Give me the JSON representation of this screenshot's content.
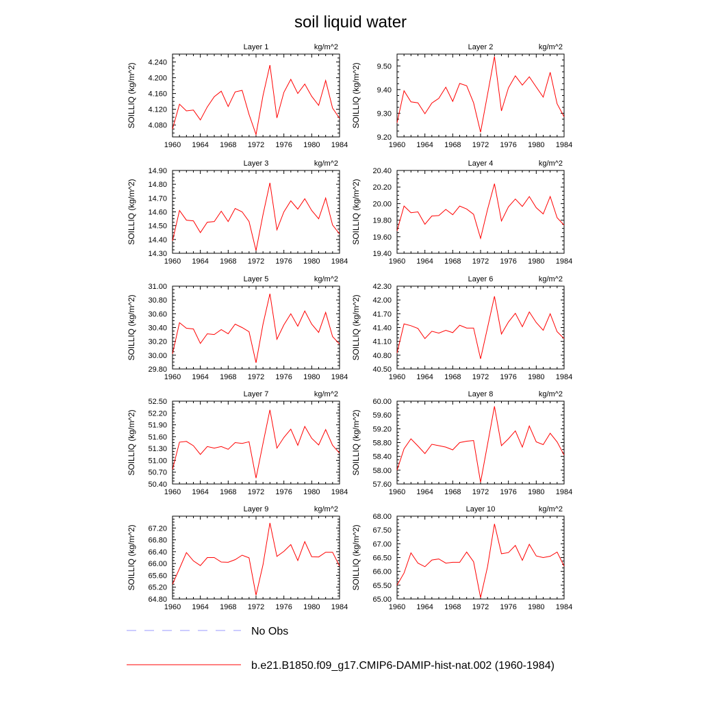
{
  "title": "soil liquid water",
  "ylabel": "SOILLIQ  (kg/m^2)",
  "units": "kg/m^2",
  "colors": {
    "model_line": "#ff0000",
    "obs_line": "#9999ff"
  },
  "legend": {
    "obs": "No Obs",
    "model": "b.e21.B1850.f09_g17.CMIP6-DAMIP-hist-nat.002 (1960-1984)"
  },
  "chart_data": [
    {
      "type": "line",
      "title": "Layer 1",
      "units": "kg/m^2",
      "ylabel": "SOILLIQ  (kg/m^2)",
      "xlim": [
        1960,
        1984
      ],
      "ylim": [
        4.05,
        4.26
      ],
      "xticks": [
        "1960",
        "1964",
        "1968",
        "1972",
        "1976",
        "1980",
        "1984"
      ],
      "yticks": [
        "4.080",
        "4.120",
        "4.160",
        "4.200",
        "4.240"
      ],
      "series": [
        {
          "name": "b.e21.B1850.f09_g17.CMIP6-DAMIP-hist-nat.002 (1960-1984)",
          "x": [
            1960,
            1961,
            1962,
            1963,
            1964,
            1965,
            1966,
            1967,
            1968,
            1969,
            1970,
            1971,
            1972,
            1973,
            1974,
            1975,
            1976,
            1977,
            1978,
            1979,
            1980,
            1981,
            1982,
            1983,
            1984
          ],
          "values": [
            4.07,
            4.133,
            4.116,
            4.118,
            4.093,
            4.126,
            4.152,
            4.166,
            4.127,
            4.164,
            4.168,
            4.107,
            4.056,
            4.155,
            4.232,
            4.098,
            4.163,
            4.196,
            4.16,
            4.184,
            4.153,
            4.13,
            4.193,
            4.123,
            4.097
          ]
        }
      ]
    },
    {
      "type": "line",
      "title": "Layer 2",
      "units": "kg/m^2",
      "ylabel": "SOILLIQ  (kg/m^2)",
      "xlim": [
        1960,
        1984
      ],
      "ylim": [
        9.2,
        9.55
      ],
      "xticks": [
        "1960",
        "1964",
        "1968",
        "1972",
        "1976",
        "1980",
        "1984"
      ],
      "yticks": [
        "9.20",
        "9.30",
        "9.40",
        "9.50"
      ],
      "series": [
        {
          "name": "b.e21.B1850.f09_g17.CMIP6-DAMIP-hist-nat.002 (1960-1984)",
          "x": [
            1960,
            1961,
            1962,
            1963,
            1964,
            1965,
            1966,
            1967,
            1968,
            1969,
            1970,
            1971,
            1972,
            1973,
            1974,
            1975,
            1976,
            1977,
            1978,
            1979,
            1980,
            1981,
            1982,
            1983,
            1984
          ],
          "values": [
            9.26,
            9.395,
            9.348,
            9.344,
            9.298,
            9.343,
            9.363,
            9.41,
            9.35,
            9.426,
            9.416,
            9.344,
            9.22,
            9.38,
            9.54,
            9.31,
            9.407,
            9.458,
            9.419,
            9.454,
            9.411,
            9.368,
            9.473,
            9.34,
            9.285
          ]
        }
      ]
    },
    {
      "type": "line",
      "title": "Layer 3",
      "units": "kg/m^2",
      "ylabel": "SOILLIQ  (kg/m^2)",
      "xlim": [
        1960,
        1984
      ],
      "ylim": [
        14.3,
        14.9
      ],
      "xticks": [
        "1960",
        "1964",
        "1968",
        "1972",
        "1976",
        "1980",
        "1984"
      ],
      "yticks": [
        "14.30",
        "14.40",
        "14.50",
        "14.60",
        "14.70",
        "14.80",
        "14.90"
      ],
      "series": [
        {
          "name": "b.e21.B1850.f09_g17.CMIP6-DAMIP-hist-nat.002 (1960-1984)",
          "x": [
            1960,
            1961,
            1962,
            1963,
            1964,
            1965,
            1966,
            1967,
            1968,
            1969,
            1970,
            1971,
            1972,
            1973,
            1974,
            1975,
            1976,
            1977,
            1978,
            1979,
            1980,
            1981,
            1982,
            1983,
            1984
          ],
          "values": [
            14.39,
            14.61,
            14.54,
            14.535,
            14.45,
            14.525,
            14.53,
            14.605,
            14.53,
            14.625,
            14.6,
            14.53,
            14.32,
            14.58,
            14.81,
            14.47,
            14.6,
            14.68,
            14.62,
            14.695,
            14.61,
            14.55,
            14.7,
            14.505,
            14.44
          ]
        }
      ]
    },
    {
      "type": "line",
      "title": "Layer 4",
      "units": "kg/m^2",
      "ylabel": "SOILLIQ  (kg/m^2)",
      "xlim": [
        1960,
        1984
      ],
      "ylim": [
        19.4,
        20.4
      ],
      "xticks": [
        "1960",
        "1964",
        "1968",
        "1972",
        "1976",
        "1980",
        "1984"
      ],
      "yticks": [
        "19.40",
        "19.60",
        "19.80",
        "20.00",
        "20.20",
        "20.40"
      ],
      "series": [
        {
          "name": "b.e21.B1850.f09_g17.CMIP6-DAMIP-hist-nat.002 (1960-1984)",
          "x": [
            1960,
            1961,
            1962,
            1963,
            1964,
            1965,
            1966,
            1967,
            1968,
            1969,
            1970,
            1971,
            1972,
            1973,
            1974,
            1975,
            1976,
            1977,
            1978,
            1979,
            1980,
            1981,
            1982,
            1983,
            1984
          ],
          "values": [
            19.67,
            19.97,
            19.89,
            19.9,
            19.75,
            19.85,
            19.855,
            19.93,
            19.865,
            19.97,
            19.935,
            19.87,
            19.58,
            19.93,
            20.24,
            19.79,
            19.96,
            20.055,
            19.965,
            20.085,
            19.95,
            19.875,
            20.085,
            19.83,
            19.74
          ]
        }
      ]
    },
    {
      "type": "line",
      "title": "Layer 5",
      "units": "kg/m^2",
      "ylabel": "SOILLIQ  (kg/m^2)",
      "xlim": [
        1960,
        1984
      ],
      "ylim": [
        29.8,
        31.0
      ],
      "xticks": [
        "1960",
        "1964",
        "1968",
        "1972",
        "1976",
        "1980",
        "1984"
      ],
      "yticks": [
        "29.80",
        "30.00",
        "30.20",
        "30.40",
        "30.60",
        "30.80",
        "31.00"
      ],
      "series": [
        {
          "name": "b.e21.B1850.f09_g17.CMIP6-DAMIP-hist-nat.002 (1960-1984)",
          "x": [
            1960,
            1961,
            1962,
            1963,
            1964,
            1965,
            1966,
            1967,
            1968,
            1969,
            1970,
            1971,
            1972,
            1973,
            1974,
            1975,
            1976,
            1977,
            1978,
            1979,
            1980,
            1981,
            1982,
            1983,
            1984
          ],
          "values": [
            30.02,
            30.47,
            30.39,
            30.38,
            30.17,
            30.31,
            30.3,
            30.37,
            30.31,
            30.45,
            30.4,
            30.34,
            29.89,
            30.45,
            30.89,
            30.23,
            30.44,
            30.6,
            30.42,
            30.64,
            30.45,
            30.33,
            30.62,
            30.27,
            30.16
          ]
        }
      ]
    },
    {
      "type": "line",
      "title": "Layer 6",
      "units": "kg/m^2",
      "ylabel": "SOILLIQ  (kg/m^2)",
      "xlim": [
        1960,
        1984
      ],
      "ylim": [
        40.5,
        42.3
      ],
      "xticks": [
        "1960",
        "1964",
        "1968",
        "1972",
        "1976",
        "1980",
        "1984"
      ],
      "yticks": [
        "40.50",
        "40.80",
        "41.10",
        "41.40",
        "41.70",
        "42.00",
        "42.30"
      ],
      "series": [
        {
          "name": "b.e21.B1850.f09_g17.CMIP6-DAMIP-hist-nat.002 (1960-1984)",
          "x": [
            1960,
            1961,
            1962,
            1963,
            1964,
            1965,
            1966,
            1967,
            1968,
            1969,
            1970,
            1971,
            1972,
            1973,
            1974,
            1975,
            1976,
            1977,
            1978,
            1979,
            1980,
            1981,
            1982,
            1983,
            1984
          ],
          "values": [
            40.85,
            41.48,
            41.44,
            41.38,
            41.16,
            41.32,
            41.28,
            41.34,
            41.29,
            41.45,
            41.39,
            41.39,
            40.72,
            41.4,
            42.08,
            41.26,
            41.52,
            41.71,
            41.42,
            41.74,
            41.51,
            41.34,
            41.7,
            41.31,
            41.16
          ]
        }
      ]
    },
    {
      "type": "line",
      "title": "Layer 7",
      "units": "kg/m^2",
      "ylabel": "SOILLIQ  (kg/m^2)",
      "xlim": [
        1960,
        1984
      ],
      "ylim": [
        50.4,
        52.5
      ],
      "xticks": [
        "1960",
        "1964",
        "1968",
        "1972",
        "1976",
        "1980",
        "1984"
      ],
      "yticks": [
        "50.40",
        "50.70",
        "51.00",
        "51.30",
        "51.60",
        "51.90",
        "52.20",
        "52.50"
      ],
      "series": [
        {
          "name": "b.e21.B1850.f09_g17.CMIP6-DAMIP-hist-nat.002 (1960-1984)",
          "x": [
            1960,
            1961,
            1962,
            1963,
            1964,
            1965,
            1966,
            1967,
            1968,
            1969,
            1970,
            1971,
            1972,
            1973,
            1974,
            1975,
            1976,
            1977,
            1978,
            1979,
            1980,
            1981,
            1982,
            1983,
            1984
          ],
          "values": [
            50.77,
            51.46,
            51.48,
            51.37,
            51.15,
            51.35,
            51.31,
            51.35,
            51.28,
            51.45,
            51.43,
            51.47,
            50.55,
            51.43,
            52.28,
            51.31,
            51.58,
            51.79,
            51.38,
            51.86,
            51.56,
            51.39,
            51.78,
            51.38,
            51.18
          ]
        }
      ]
    },
    {
      "type": "line",
      "title": "Layer 8",
      "units": "kg/m^2",
      "ylabel": "SOILLIQ  (kg/m^2)",
      "xlim": [
        1960,
        1984
      ],
      "ylim": [
        57.6,
        60.0
      ],
      "xticks": [
        "1960",
        "1964",
        "1968",
        "1972",
        "1976",
        "1980",
        "1984"
      ],
      "yticks": [
        "57.60",
        "58.00",
        "58.40",
        "58.80",
        "59.20",
        "59.60",
        "60.00"
      ],
      "series": [
        {
          "name": "b.e21.B1850.f09_g17.CMIP6-DAMIP-hist-nat.002 (1960-1984)",
          "x": [
            1960,
            1961,
            1962,
            1963,
            1964,
            1965,
            1966,
            1967,
            1968,
            1969,
            1970,
            1971,
            1972,
            1973,
            1974,
            1975,
            1976,
            1977,
            1978,
            1979,
            1980,
            1981,
            1982,
            1983,
            1984
          ],
          "values": [
            58.0,
            58.62,
            58.91,
            58.7,
            58.48,
            58.75,
            58.71,
            58.67,
            58.59,
            58.8,
            58.84,
            58.86,
            57.65,
            58.75,
            59.85,
            58.71,
            58.91,
            59.14,
            58.67,
            59.28,
            58.82,
            58.74,
            59.07,
            58.82,
            58.44
          ]
        }
      ]
    },
    {
      "type": "line",
      "title": "Layer 9",
      "units": "kg/m^2",
      "ylabel": "SOILLIQ  (kg/m^2)",
      "xlim": [
        1960,
        1984
      ],
      "ylim": [
        64.8,
        67.6
      ],
      "xticks": [
        "1960",
        "1964",
        "1968",
        "1972",
        "1976",
        "1980",
        "1984"
      ],
      "yticks": [
        "64.80",
        "65.20",
        "65.60",
        "66.00",
        "66.40",
        "66.80",
        "67.20"
      ],
      "series": [
        {
          "name": "b.e21.B1850.f09_g17.CMIP6-DAMIP-hist-nat.002 (1960-1984)",
          "x": [
            1960,
            1961,
            1962,
            1963,
            1964,
            1965,
            1966,
            1967,
            1968,
            1969,
            1970,
            1971,
            1972,
            1973,
            1974,
            1975,
            1976,
            1977,
            1978,
            1979,
            1980,
            1981,
            1982,
            1983,
            1984
          ],
          "values": [
            65.3,
            65.83,
            66.37,
            66.09,
            65.93,
            66.2,
            66.2,
            66.05,
            66.04,
            66.13,
            66.28,
            66.19,
            64.93,
            65.96,
            67.37,
            66.24,
            66.41,
            66.64,
            66.1,
            66.74,
            66.23,
            66.22,
            66.38,
            66.38,
            65.91
          ]
        }
      ]
    },
    {
      "type": "line",
      "title": "Layer 10",
      "units": "kg/m^2",
      "ylabel": "SOILLIQ  (kg/m^2)",
      "xlim": [
        1960,
        1984
      ],
      "ylim": [
        65.0,
        68.0
      ],
      "xticks": [
        "1960",
        "1964",
        "1968",
        "1972",
        "1976",
        "1980",
        "1984"
      ],
      "yticks": [
        "65.00",
        "65.50",
        "66.00",
        "66.50",
        "67.00",
        "67.50",
        "68.00"
      ],
      "series": [
        {
          "name": "b.e21.B1850.f09_g17.CMIP6-DAMIP-hist-nat.002 (1960-1984)",
          "x": [
            1960,
            1961,
            1962,
            1963,
            1964,
            1965,
            1966,
            1967,
            1968,
            1969,
            1970,
            1971,
            1972,
            1973,
            1974,
            1975,
            1976,
            1977,
            1978,
            1979,
            1980,
            1981,
            1982,
            1983,
            1984
          ],
          "values": [
            65.5,
            65.94,
            66.67,
            66.3,
            66.17,
            66.41,
            66.45,
            66.3,
            66.33,
            66.33,
            66.7,
            66.35,
            65.05,
            66.17,
            67.72,
            66.64,
            66.68,
            66.94,
            66.4,
            66.98,
            66.56,
            66.5,
            66.55,
            66.7,
            66.19
          ]
        }
      ]
    }
  ]
}
